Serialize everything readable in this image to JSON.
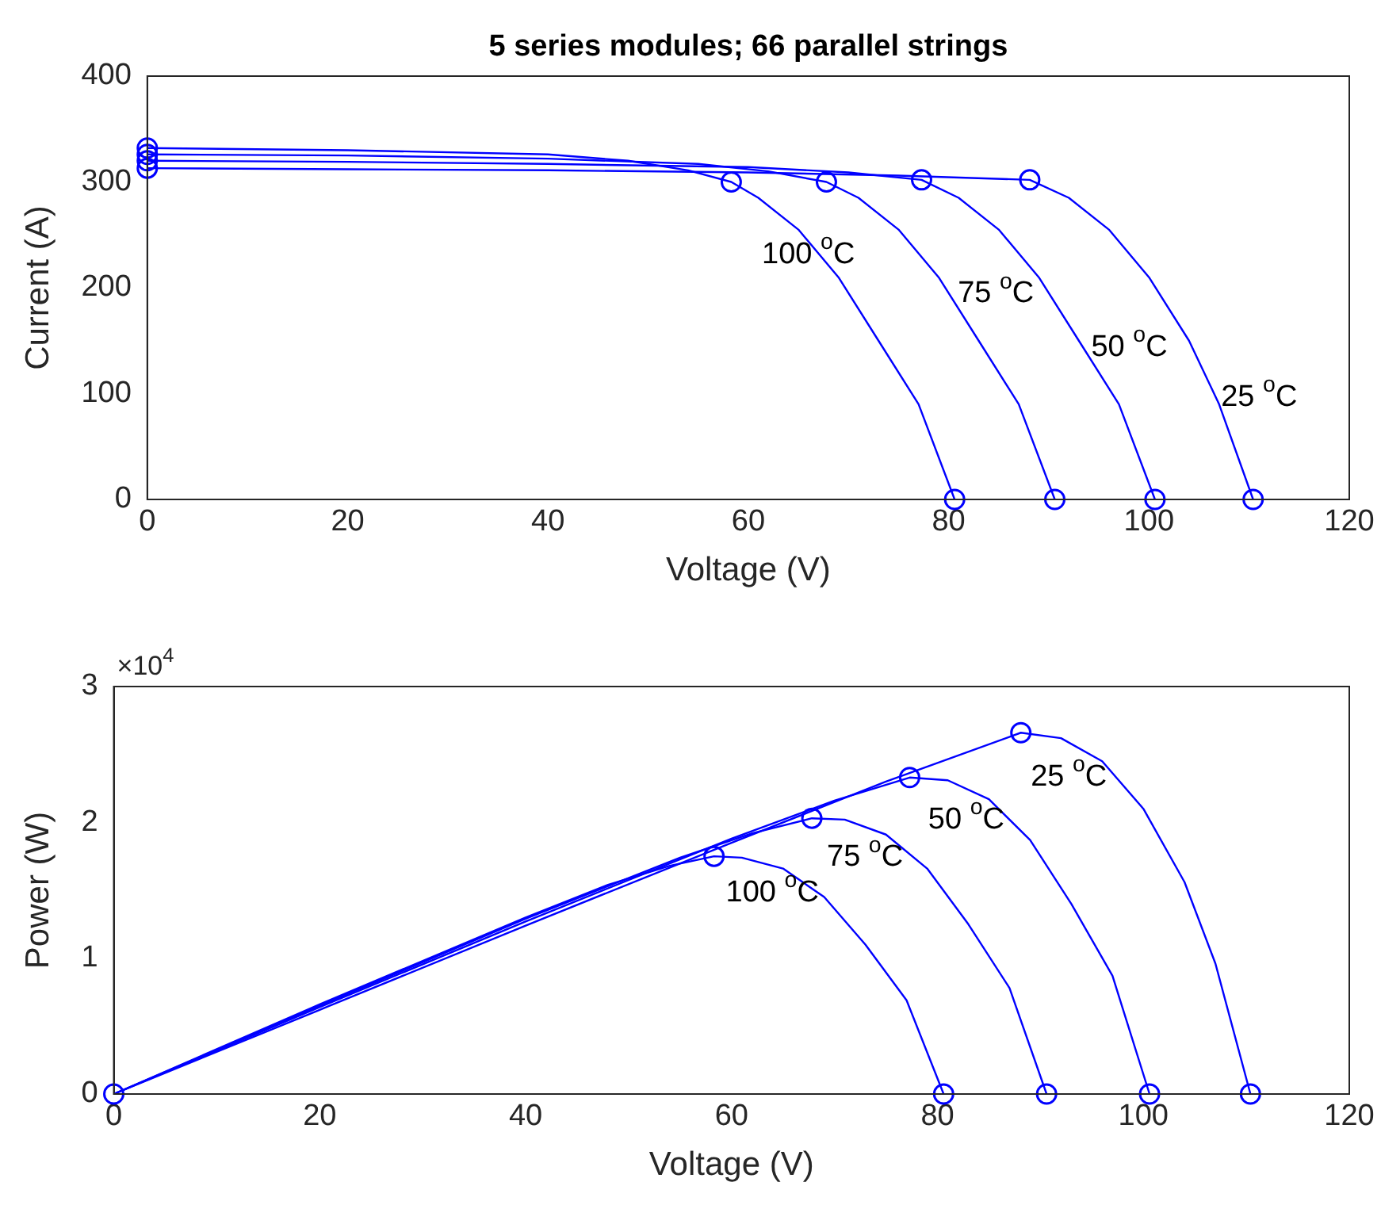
{
  "chart_data": [
    {
      "type": "line",
      "title": "5 series modules; 66 parallel strings",
      "xlabel": "Voltage (V)",
      "ylabel": "Current (A)",
      "xlim": [
        0,
        120
      ],
      "xticks": [
        0,
        20,
        40,
        60,
        80,
        100,
        120
      ],
      "ylim": [
        0,
        400
      ],
      "yticks": [
        0,
        100,
        200,
        300,
        400
      ],
      "grid": false,
      "legend": false,
      "marker": "none",
      "series": [
        {
          "color": "#0000ff",
          "x": [
            0,
            20,
            40,
            60,
            75,
            88.1,
            92,
            96,
            100,
            104,
            107,
            110.4
          ],
          "values": [
            313,
            312,
            311,
            309,
            306,
            302,
            285,
            255,
            210,
            150,
            90,
            0
          ]
        },
        {
          "color": "#0000ff",
          "x": [
            0,
            20,
            40,
            60,
            70,
            77.3,
            81,
            85,
            89,
            93,
            97,
            100.6
          ],
          "values": [
            320,
            319,
            317,
            314,
            309,
            302,
            285,
            255,
            210,
            150,
            90,
            0
          ]
        },
        {
          "color": "#0000ff",
          "x": [
            0,
            20,
            40,
            55,
            62,
            67.8,
            71,
            75,
            79,
            83,
            87,
            90.6
          ],
          "values": [
            326,
            325,
            322,
            317,
            310,
            300,
            285,
            255,
            210,
            150,
            90,
            0
          ]
        },
        {
          "color": "#0000ff",
          "x": [
            0,
            20,
            40,
            48,
            54,
            58.3,
            61,
            65,
            69,
            73,
            77,
            80.6
          ],
          "values": [
            332,
            330,
            326,
            320,
            311,
            300,
            285,
            255,
            210,
            150,
            90,
            0
          ]
        },
        {
          "type": "scatter",
          "marker": "circle",
          "color": "#0000ff",
          "x": [
            0,
            88.1,
            110.4
          ],
          "values": [
            313,
            302,
            0
          ]
        },
        {
          "type": "scatter",
          "marker": "circle",
          "color": "#0000ff",
          "x": [
            0,
            77.3,
            100.6
          ],
          "values": [
            320,
            302,
            0
          ]
        },
        {
          "type": "scatter",
          "marker": "circle",
          "color": "#0000ff",
          "x": [
            0,
            67.8,
            90.6
          ],
          "values": [
            326,
            300,
            0
          ]
        },
        {
          "type": "scatter",
          "marker": "circle",
          "color": "#0000ff",
          "x": [
            0,
            58.3,
            80.6
          ],
          "values": [
            332,
            300,
            0
          ]
        }
      ],
      "annotations": [
        "25 $^{o}$C",
        "50 $^{o}$C",
        "75 $^{o}$C",
        "100 $^{o}$C"
      ]
    },
    {
      "type": "line",
      "xlabel": "Voltage (V)",
      "ylabel": "Power (W)",
      "xlim": [
        0,
        120
      ],
      "xticks": [
        0,
        20,
        40,
        60,
        80,
        100,
        120
      ],
      "ylim": [
        0,
        3
      ],
      "yticks": [
        0,
        1,
        2,
        3
      ],
      "grid": false,
      "legend": false,
      "marker": "none",
      "series": [
        {
          "color": "#0000ff",
          "x": [
            0,
            20,
            40,
            60,
            75,
            88.1,
            92,
            96,
            100,
            104,
            107,
            110.4
          ],
          "values": [
            0,
            0.62,
            1.24,
            1.85,
            2.3,
            2.66,
            2.62,
            2.45,
            2.1,
            1.56,
            0.96,
            0
          ]
        },
        {
          "color": "#0000ff",
          "x": [
            0,
            20,
            40,
            60,
            70,
            77.3,
            81,
            85,
            89,
            93,
            97,
            100.6
          ],
          "values": [
            0,
            0.64,
            1.27,
            1.88,
            2.16,
            2.33,
            2.31,
            2.17,
            1.87,
            1.4,
            0.87,
            0
          ]
        },
        {
          "color": "#0000ff",
          "x": [
            0,
            20,
            40,
            55,
            62,
            67.8,
            71,
            75,
            79,
            83,
            87,
            90.6
          ],
          "values": [
            0,
            0.65,
            1.29,
            1.74,
            1.92,
            2.03,
            2.02,
            1.91,
            1.66,
            1.25,
            0.78,
            0
          ]
        },
        {
          "color": "#0000ff",
          "x": [
            0,
            20,
            40,
            48,
            54,
            58.3,
            61,
            65,
            69,
            73,
            77,
            80.6
          ],
          "values": [
            0,
            0.66,
            1.3,
            1.54,
            1.68,
            1.75,
            1.74,
            1.66,
            1.45,
            1.1,
            0.69,
            0
          ]
        },
        {
          "type": "scatter",
          "marker": "circle",
          "color": "#0000ff",
          "x": [
            0,
            88.1,
            110.4
          ],
          "values": [
            0,
            2.66,
            0
          ]
        },
        {
          "type": "scatter",
          "marker": "circle",
          "color": "#0000ff",
          "x": [
            77.3,
            100.6
          ],
          "values": [
            2.33,
            0
          ]
        },
        {
          "type": "scatter",
          "marker": "circle",
          "color": "#0000ff",
          "x": [
            67.8,
            90.6
          ],
          "values": [
            2.03,
            0
          ]
        },
        {
          "type": "scatter",
          "marker": "circle",
          "color": "#0000ff",
          "x": [
            58.3,
            80.6
          ],
          "values": [
            1.75,
            0
          ]
        }
      ],
      "annotations": [
        "×10$^{4}$",
        "25 $^{o}$C",
        "50 $^{o}$C",
        "75 $^{o}$C",
        "100 $^{o}$C"
      ]
    }
  ]
}
